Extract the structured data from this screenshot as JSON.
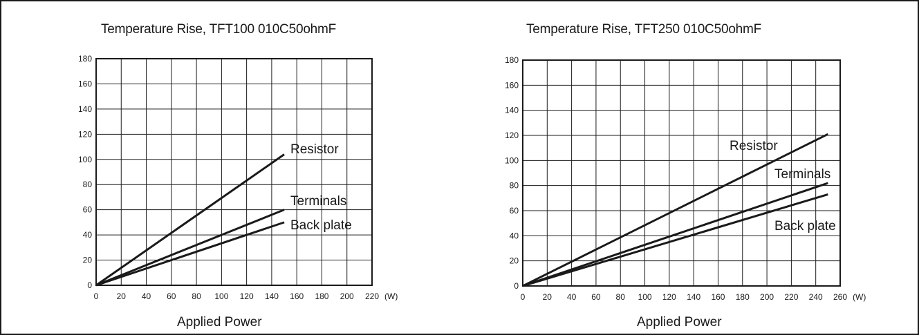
{
  "chart_data": [
    {
      "type": "line",
      "title": "Temperature Rise, TFT100 010C50ohmF",
      "xlabel": "Applied Power",
      "x_unit": "(W)",
      "ylabel": "",
      "xlim": [
        0,
        220
      ],
      "ylim": [
        0,
        180
      ],
      "x_ticks": [
        0,
        20,
        40,
        60,
        80,
        100,
        120,
        140,
        160,
        180,
        200,
        220
      ],
      "y_ticks": [
        0,
        20,
        40,
        60,
        80,
        100,
        120,
        140,
        160,
        180
      ],
      "grid": true,
      "series": [
        {
          "name": "Resistor",
          "x": [
            0,
            150
          ],
          "y": [
            0,
            104
          ]
        },
        {
          "name": "Terminals",
          "x": [
            0,
            150
          ],
          "y": [
            0,
            60
          ]
        },
        {
          "name": "Back plate",
          "x": [
            0,
            150
          ],
          "y": [
            0,
            50
          ]
        }
      ]
    },
    {
      "type": "line",
      "title": "Temperature Rise, TFT250 010C50ohmF",
      "xlabel": "Applied Power",
      "x_unit": "(W)",
      "ylabel": "",
      "xlim": [
        0,
        260
      ],
      "ylim": [
        0,
        180
      ],
      "x_ticks": [
        0,
        20,
        40,
        60,
        80,
        100,
        120,
        140,
        160,
        180,
        200,
        220,
        240,
        260
      ],
      "y_ticks": [
        0,
        20,
        40,
        60,
        80,
        100,
        120,
        140,
        160,
        180
      ],
      "grid": true,
      "series": [
        {
          "name": "Resistor",
          "x": [
            0,
            250
          ],
          "y": [
            0,
            121
          ]
        },
        {
          "name": "Terminals",
          "x": [
            0,
            250
          ],
          "y": [
            0,
            82
          ]
        },
        {
          "name": "Back plate",
          "x": [
            0,
            250
          ],
          "y": [
            0,
            73
          ]
        }
      ]
    }
  ]
}
